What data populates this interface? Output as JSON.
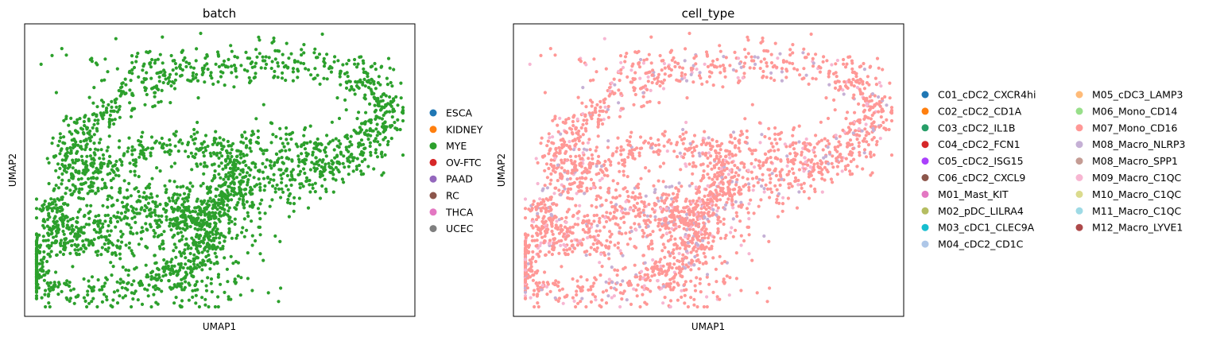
{
  "chart_data": [
    {
      "type": "scatter",
      "title": "batch",
      "xlabel": "UMAP1",
      "ylabel": "UMAP2",
      "ticks": "none",
      "legend_placement": "right",
      "point_color": "#2ca02c",
      "n_points_approx": 2800,
      "series": [
        {
          "name": "ESCA",
          "color": "#1f77b4",
          "count": 0
        },
        {
          "name": "KIDNEY",
          "color": "#ff7f0e",
          "count": 0
        },
        {
          "name": "MYE",
          "color": "#2ca02c",
          "count": 2800
        },
        {
          "name": "OV-FTC",
          "color": "#d62728",
          "count": 0
        },
        {
          "name": "PAAD",
          "color": "#9467bd",
          "count": 0
        },
        {
          "name": "RC",
          "color": "#8c564b",
          "count": 0
        },
        {
          "name": "THCA",
          "color": "#e377c2",
          "count": 0
        },
        {
          "name": "UCEC",
          "color": "#7f7f7f",
          "count": 0
        }
      ]
    },
    {
      "type": "scatter",
      "title": "cell_type",
      "xlabel": "UMAP1",
      "ylabel": "UMAP2",
      "ticks": "none",
      "legend_placement": "right",
      "legend_columns": 2,
      "n_points_approx": 2800,
      "series": [
        {
          "name": "C01_cDC2_CXCR4hi",
          "color": "#1f77b4"
        },
        {
          "name": "C02_cDC2_CD1A",
          "color": "#ff7f0e"
        },
        {
          "name": "C03_cDC2_IL1B",
          "color": "#279e68"
        },
        {
          "name": "C04_cDC2_FCN1",
          "color": "#d62728"
        },
        {
          "name": "C05_cDC2_ISG15",
          "color": "#aa40fc"
        },
        {
          "name": "C06_cDC2_CXCL9",
          "color": "#8c564b"
        },
        {
          "name": "M01_Mast_KIT",
          "color": "#e377c2"
        },
        {
          "name": "M02_pDC_LILRA4",
          "color": "#b5bd61"
        },
        {
          "name": "M03_cDC1_CLEC9A",
          "color": "#17becf"
        },
        {
          "name": "M04_cDC2_CD1C",
          "color": "#aec7e8"
        },
        {
          "name": "M05_cDC3_LAMP3",
          "color": "#ffbb78"
        },
        {
          "name": "M06_Mono_CD14",
          "color": "#98df8a"
        },
        {
          "name": "M07_Mono_CD16",
          "color": "#ff9896"
        },
        {
          "name": "M08_Macro_NLRP3",
          "color": "#c5b0d5"
        },
        {
          "name": "M08_Macro_SPP1",
          "color": "#c49c94"
        },
        {
          "name": "M09_Macro_C1QC",
          "color": "#f7b6d2"
        },
        {
          "name": "M10_Macro_C1QC",
          "color": "#dbdb8d"
        },
        {
          "name": "M11_Macro_C1QC",
          "color": "#9edae5"
        },
        {
          "name": "M12_Macro_LYVE1",
          "color": "#ad494a"
        }
      ],
      "dominant_series": "M07_Mono_CD16",
      "minor_series": [
        "M08_Macro_NLRP3",
        "M09_Macro_C1QC"
      ]
    }
  ]
}
